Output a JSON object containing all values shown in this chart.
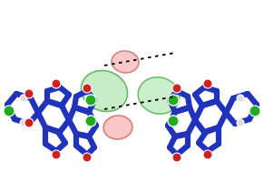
{
  "figsize": [
    2.91,
    1.89
  ],
  "dpi": 100,
  "bg_color": "#ffffff",
  "bond_color": "#2233bb",
  "bond_lw": 4.5,
  "halogen_color": "#22aa22",
  "oxygen_color": "#cc2222",
  "nitrogen_color": "#2233bb",
  "hydrogen_color": "#dddddd",
  "hbond_color": "#000000",
  "green_blob_fc": "#b8e8b8",
  "green_blob_ec": "#44aa44",
  "pink_blob_fc": "#f8b8b8",
  "pink_blob_ec": "#cc6666"
}
